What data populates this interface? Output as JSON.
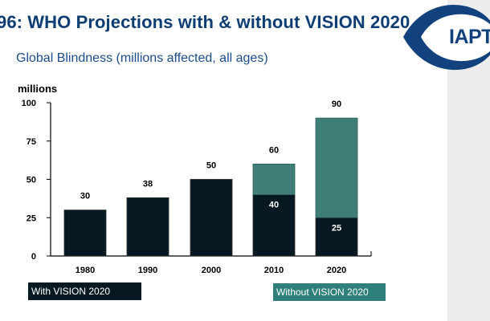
{
  "slide": {
    "title": "96: WHO Projections with & without VISION 2020",
    "subtitle": "Global Blindness (millions affected, all ages)"
  },
  "logo": {
    "text": "IAPT",
    "color": "#12427d"
  },
  "legend": {
    "with_label": "With VISION 2020",
    "with_color": "#061922",
    "without_label": "Without VISION 2020",
    "without_color": "#2f7f7a"
  },
  "chart_data": {
    "type": "bar",
    "stacked": true,
    "ylabel": "millions",
    "ylim": [
      0,
      100
    ],
    "yticks": [
      0,
      25,
      50,
      75,
      100
    ],
    "grid": false,
    "categories": [
      "1980",
      "1990",
      "2000",
      "2010",
      "2020"
    ],
    "series": [
      {
        "name": "With VISION 2020",
        "color": "#061922",
        "values": [
          30,
          38,
          50,
          40,
          25
        ]
      },
      {
        "name": "Without VISION 2020",
        "color": "#3f7d78",
        "values": [
          0,
          0,
          0,
          20,
          65
        ]
      }
    ],
    "inner_labels": [
      "",
      "",
      "",
      "40",
      "25"
    ],
    "total_labels": [
      "30",
      "38",
      "50",
      "60",
      "90"
    ]
  }
}
